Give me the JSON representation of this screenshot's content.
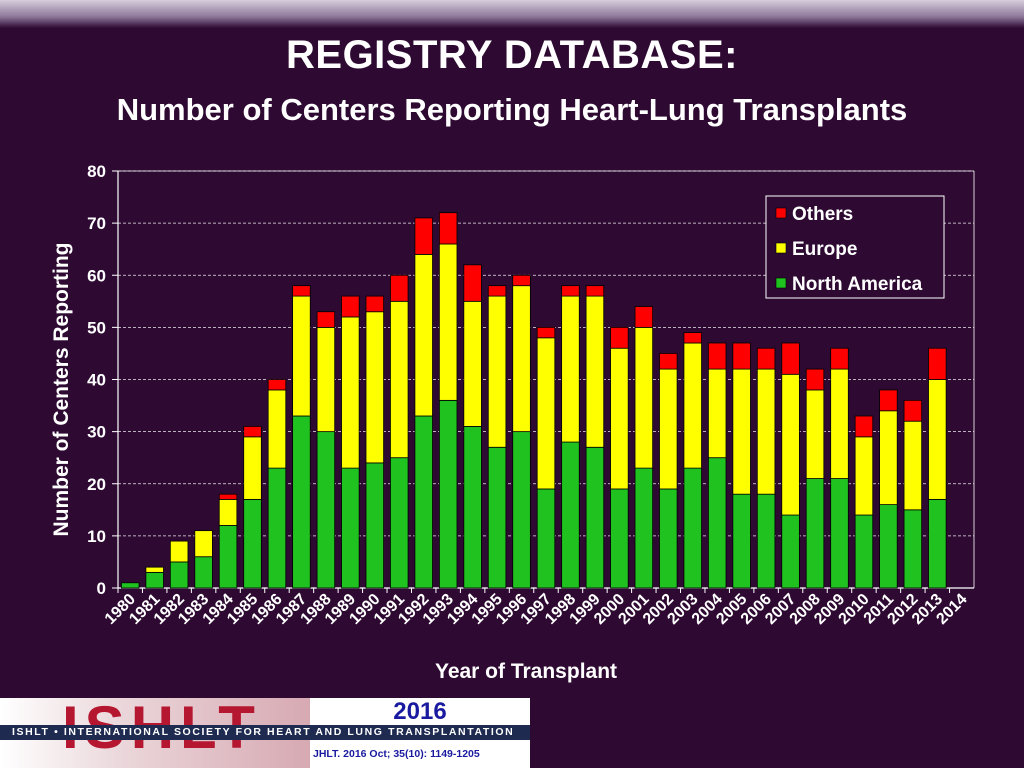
{
  "slide": {
    "title": "REGISTRY DATABASE:",
    "subtitle": "Number of Centers Reporting Heart-Lung Transplants"
  },
  "footer": {
    "logo": "ISHLT",
    "org_line": "ISHLT • INTERNATIONAL SOCIETY FOR HEART AND LUNG TRANSPLANTATION",
    "year": "2016",
    "citation": "JHLT. 2016 Oct; 35(10): 1149-1205"
  },
  "colors": {
    "north_america": "#1fc21f",
    "europe": "#ffff00",
    "others": "#ff0000",
    "background": "#2e0a33"
  },
  "chart_data": {
    "type": "bar",
    "stacked": true,
    "title": "",
    "xlabel": "Year of Transplant",
    "ylabel": "Number of Centers Reporting",
    "ylim": [
      0,
      80
    ],
    "yticks": [
      0,
      10,
      20,
      30,
      40,
      50,
      60,
      70,
      80
    ],
    "grid": true,
    "legend_position": "top-right",
    "categories": [
      "1980",
      "1981",
      "1982",
      "1983",
      "1984",
      "1985",
      "1986",
      "1987",
      "1988",
      "1989",
      "1990",
      "1991",
      "1992",
      "1993",
      "1994",
      "1995",
      "1996",
      "1997",
      "1998",
      "1999",
      "2000",
      "2001",
      "2002",
      "2003",
      "2004",
      "2005",
      "2006",
      "2007",
      "2008",
      "2009",
      "2010",
      "2011",
      "2012",
      "2013",
      "2014"
    ],
    "series": [
      {
        "name": "North America",
        "color": "#1fc21f",
        "values": [
          1,
          3,
          5,
          6,
          12,
          17,
          23,
          33,
          30,
          23,
          24,
          25,
          33,
          36,
          31,
          27,
          30,
          19,
          28,
          27,
          19,
          23,
          19,
          23,
          25,
          18,
          18,
          14,
          21,
          21,
          14,
          16,
          15,
          17,
          0
        ]
      },
      {
        "name": "Europe",
        "color": "#ffff00",
        "values": [
          0,
          1,
          4,
          5,
          5,
          12,
          15,
          23,
          20,
          29,
          29,
          30,
          31,
          30,
          24,
          29,
          28,
          29,
          28,
          29,
          27,
          27,
          23,
          24,
          17,
          24,
          24,
          27,
          17,
          21,
          15,
          18,
          17,
          23,
          0
        ]
      },
      {
        "name": "Others",
        "color": "#ff0000",
        "values": [
          0,
          0,
          0,
          0,
          1,
          2,
          2,
          2,
          3,
          4,
          3,
          5,
          7,
          6,
          7,
          2,
          2,
          2,
          2,
          2,
          4,
          4,
          3,
          2,
          5,
          5,
          4,
          6,
          4,
          4,
          4,
          4,
          4,
          6,
          0
        ]
      }
    ]
  }
}
